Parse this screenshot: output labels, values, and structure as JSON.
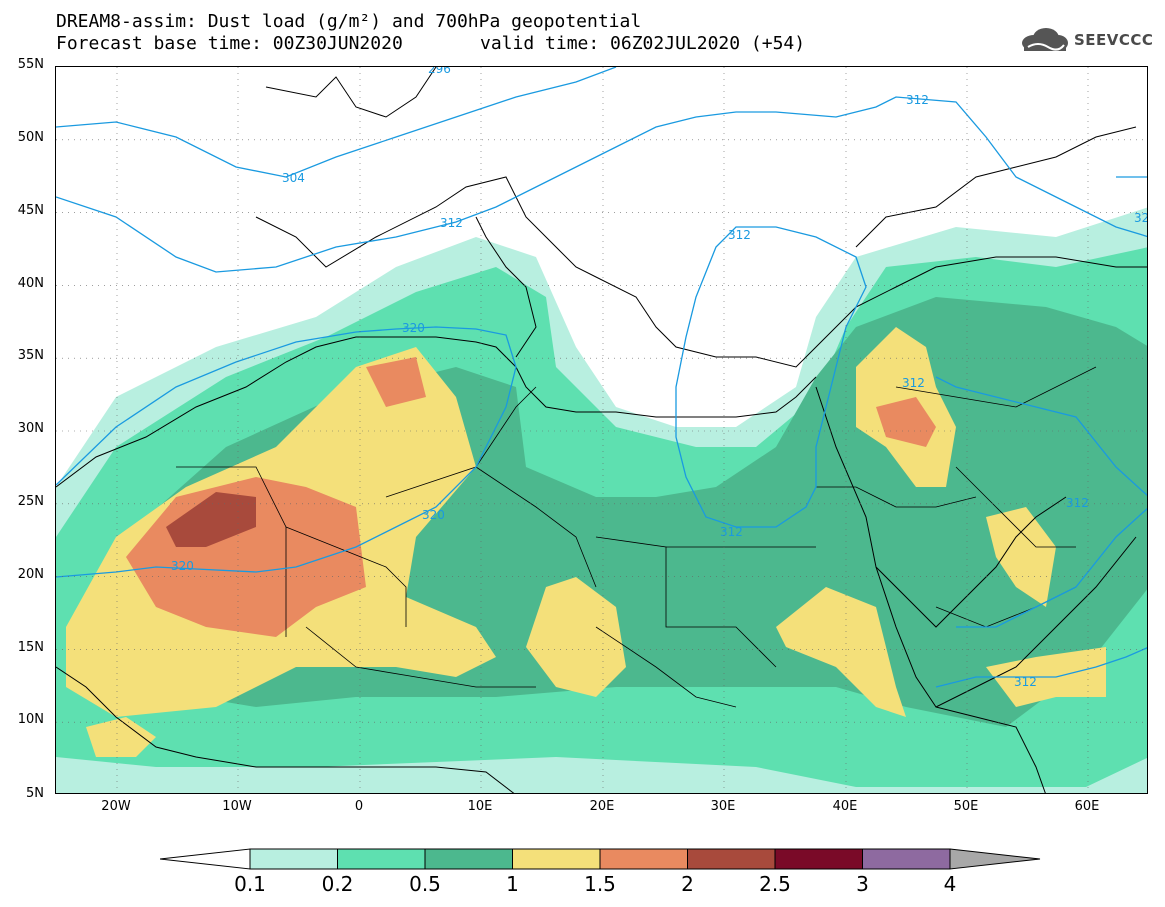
{
  "header": {
    "line1": "DREAM8-assim: Dust load (g/m²) and 700hPa geopotential",
    "line2_base": "Forecast base time: 00Z30JUN2020",
    "line2_valid": "valid time: 06Z02JUL2020 (+54)"
  },
  "logo": {
    "text": "SEEVCCC",
    "icon": "cloud-icon"
  },
  "map": {
    "lat_labels": [
      "55N",
      "50N",
      "45N",
      "40N",
      "35N",
      "30N",
      "25N",
      "20N",
      "15N",
      "10N",
      "5N"
    ],
    "lon_labels": [
      "20W",
      "10W",
      "0",
      "10E",
      "20E",
      "30E",
      "40E",
      "50E",
      "60E"
    ],
    "contour_labels": [
      "296",
      "304",
      "312",
      "312",
      "320",
      "320",
      "320",
      "312",
      "312",
      "312",
      "312",
      "312",
      "32"
    ],
    "colors": {
      "coast": "#000000",
      "contour": "#1a9ae0"
    }
  },
  "colorbar": {
    "levels": [
      "0.1",
      "0.2",
      "0.5",
      "1",
      "1.5",
      "2",
      "2.5",
      "3",
      "4"
    ],
    "colors": [
      "#ffffff",
      "#b8efe0",
      "#5ee0b0",
      "#4cb88e",
      "#f4e07a",
      "#e98a60",
      "#a84a3c",
      "#7a0a28",
      "#8e6aa0",
      "#a8a8a8"
    ]
  }
}
